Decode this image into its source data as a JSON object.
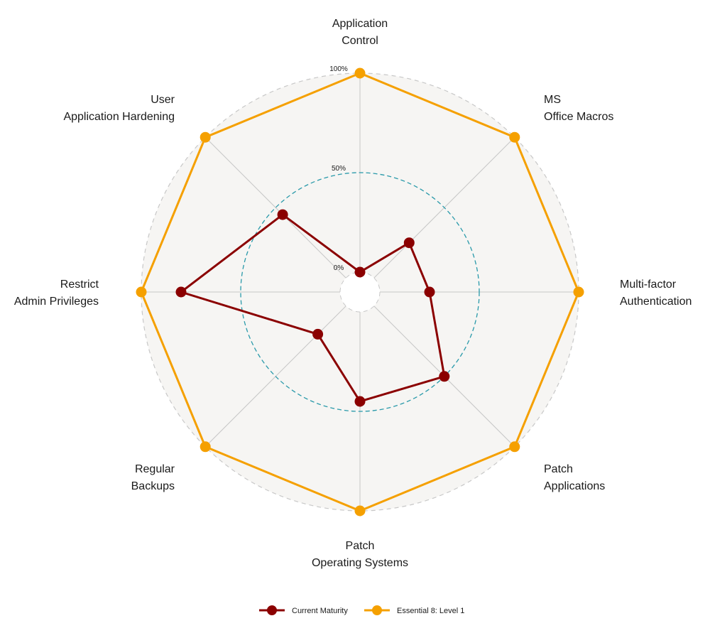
{
  "chart_data": {
    "type": "radar",
    "categories": [
      [
        "Application",
        "Control"
      ],
      [
        "MS",
        "Office Macros"
      ],
      [
        "Multi-factor",
        "Authentication"
      ],
      [
        "Patch",
        "Applications"
      ],
      [
        "Patch",
        "Operating Systems"
      ],
      [
        "Regular",
        "Backups"
      ],
      [
        "Restrict",
        "Admin Privileges"
      ],
      [
        "User",
        "Application Hardening"
      ]
    ],
    "radial_ticks": [
      {
        "value": 0,
        "label": "0%"
      },
      {
        "value": 50,
        "label": "50%"
      },
      {
        "value": 100,
        "label": "100%"
      }
    ],
    "rlim": [
      -10,
      100
    ],
    "series": [
      {
        "name": "Current Maturity",
        "color": "#8b0000",
        "values": [
          0,
          25,
          25,
          50,
          45,
          20,
          80,
          45
        ]
      },
      {
        "name": "Essential 8: Level 1",
        "color": "#f5a000",
        "values": [
          100,
          100,
          100,
          100,
          100,
          100,
          100,
          100
        ]
      }
    ],
    "colors": {
      "panel_fill": "#f6f5f3",
      "outer_ring": "#c8c8c8",
      "spoke": "#c6c6c6",
      "mid_ring": "#2a9aaa",
      "center_ring": "#c8c8c8"
    },
    "grid": true,
    "legend_position": "bottom"
  }
}
